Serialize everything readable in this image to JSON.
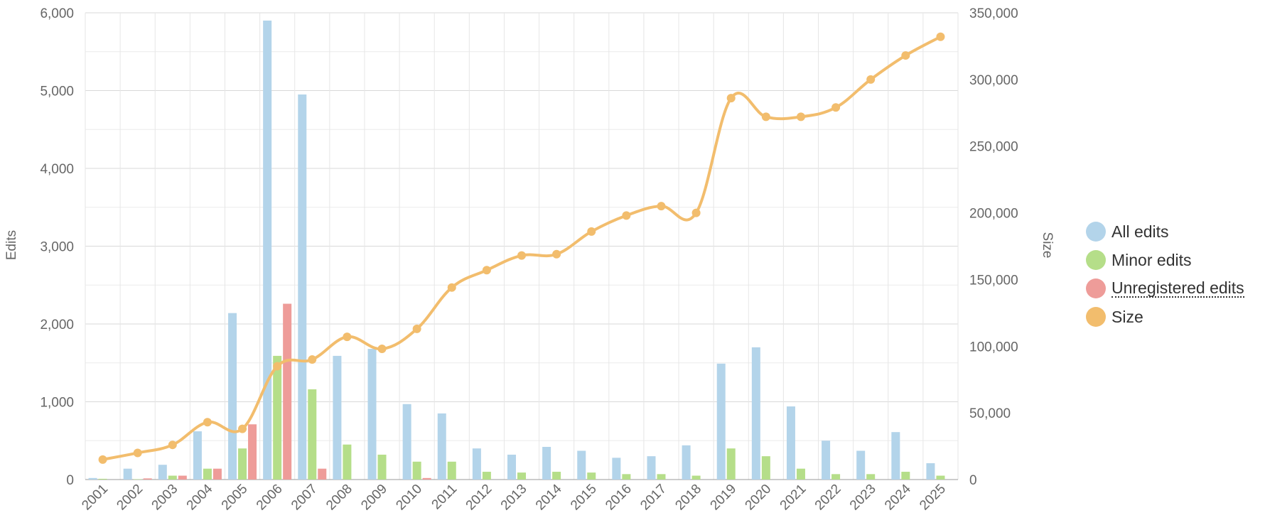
{
  "chart_data": {
    "type": "bar",
    "categories": [
      "2001",
      "2002",
      "2003",
      "2004",
      "2005",
      "2006",
      "2007",
      "2008",
      "2009",
      "2010",
      "2011",
      "2012",
      "2013",
      "2014",
      "2015",
      "2016",
      "2017",
      "2018",
      "2019",
      "2020",
      "2021",
      "2022",
      "2023",
      "2024",
      "2025"
    ],
    "series": [
      {
        "name": "All edits",
        "type": "bar",
        "axis": "left",
        "color": "#b3d4ea",
        "values": [
          20,
          140,
          190,
          620,
          2140,
          5900,
          4950,
          1590,
          1680,
          970,
          850,
          400,
          320,
          420,
          370,
          280,
          300,
          440,
          1490,
          1700,
          940,
          500,
          370,
          610,
          210
        ]
      },
      {
        "name": "Minor edits",
        "type": "bar",
        "axis": "left",
        "color": "#b5de89",
        "values": [
          10,
          5,
          50,
          140,
          400,
          1590,
          1160,
          450,
          320,
          230,
          230,
          100,
          90,
          100,
          90,
          70,
          70,
          50,
          400,
          300,
          140,
          70,
          70,
          100,
          50
        ]
      },
      {
        "name": "Unregistered edits",
        "type": "bar",
        "axis": "left",
        "color": "#ee9c99",
        "values": [
          0,
          15,
          50,
          140,
          710,
          2260,
          140,
          0,
          0,
          20,
          0,
          0,
          0,
          0,
          0,
          0,
          0,
          0,
          0,
          0,
          0,
          0,
          0,
          0,
          0
        ]
      },
      {
        "name": "Size",
        "type": "line",
        "axis": "right",
        "color": "#f2bd6d",
        "values": [
          15000,
          20000,
          26000,
          43000,
          38000,
          85000,
          90000,
          107000,
          98000,
          113000,
          144000,
          157000,
          168000,
          169000,
          186000,
          198000,
          205000,
          200000,
          286000,
          272000,
          272000,
          279000,
          300000,
          318000,
          332000
        ]
      }
    ],
    "ylabel": "Edits",
    "y2label": "Size",
    "ylim": [
      0,
      6000
    ],
    "y2lim": [
      0,
      350000
    ],
    "yticks": [
      "0",
      "1,000",
      "2,000",
      "3,000",
      "4,000",
      "5,000",
      "6,000"
    ],
    "y2ticks": [
      "0",
      "50,000",
      "100,000",
      "150,000",
      "200,000",
      "250,000",
      "300,000",
      "350,000"
    ],
    "grid": true,
    "legend_position": "right"
  }
}
